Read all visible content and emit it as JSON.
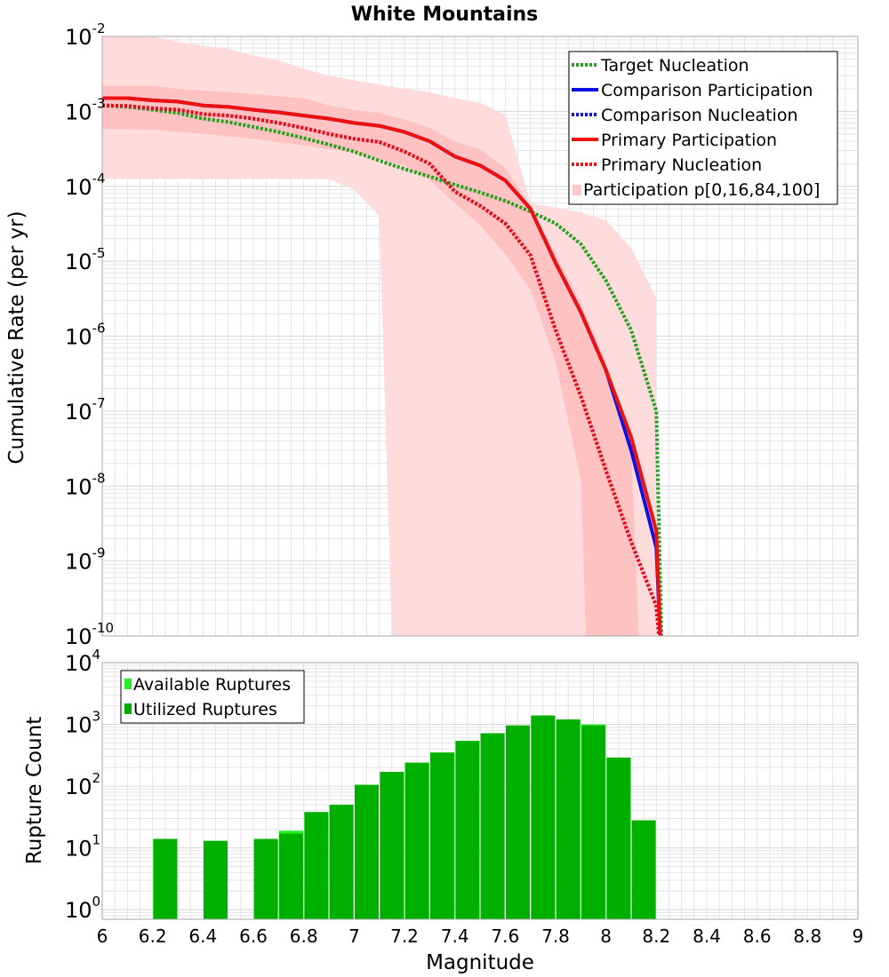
{
  "title": "White Mountains",
  "x_axis": {
    "label": "Magnitude",
    "range": [
      6,
      9
    ],
    "ticks": [
      "6",
      "6.2",
      "6.4",
      "6.6",
      "6.8",
      "7",
      "7.2",
      "7.4",
      "7.6",
      "7.8",
      "8",
      "8.2",
      "8.4",
      "8.6",
      "8.8",
      "9"
    ]
  },
  "colors": {
    "target": "#22a01e",
    "comparison": "#1010e0",
    "primary": "#ee1111",
    "band_outer": "#ffdcdc",
    "band_inner": "#ffc2c2",
    "available": "#22ee22",
    "utilized": "#00b000",
    "grid": "#e4e4e4",
    "frame": "#aaaaaa"
  },
  "chart_data": [
    {
      "type": "line",
      "title": "White Mountains",
      "ylabel": "Cumulative Rate (per yr)",
      "yscale": "log",
      "ylim": [
        1e-10,
        0.01
      ],
      "xlim": [
        6,
        9
      ],
      "y_tick_labels": [
        {
          "base": "10",
          "exp": "-2"
        },
        {
          "base": "10",
          "exp": "-3"
        },
        {
          "base": "10",
          "exp": "-4"
        },
        {
          "base": "10",
          "exp": "-5"
        },
        {
          "base": "10",
          "exp": "-6"
        },
        {
          "base": "10",
          "exp": "-7"
        },
        {
          "base": "10",
          "exp": "-8"
        },
        {
          "base": "10",
          "exp": "-9"
        },
        {
          "base": "10",
          "exp": "-10"
        }
      ],
      "legend_position": "top-right",
      "legend": [
        {
          "label": "Target Nucleation",
          "style": "dotted",
          "color_key": "target"
        },
        {
          "label": "Comparison Participation",
          "style": "solid",
          "color_key": "comparison"
        },
        {
          "label": "Comparison Nucleation",
          "style": "dotted",
          "color_key": "comparison"
        },
        {
          "label": "Primary Participation",
          "style": "solid",
          "color_key": "primary"
        },
        {
          "label": "Primary Nucleation",
          "style": "dotted",
          "color_key": "primary"
        },
        {
          "label": "Participation p[0,16,84,100]",
          "style": "band",
          "color_key": "band_outer"
        }
      ],
      "x": [
        6.0,
        6.1,
        6.2,
        6.3,
        6.4,
        6.5,
        6.6,
        6.7,
        6.8,
        6.9,
        7.0,
        7.1,
        7.2,
        7.3,
        7.4,
        7.5,
        7.6,
        7.7,
        7.8,
        7.9,
        8.0,
        8.1,
        8.2
      ],
      "series": [
        {
          "name": "Target Nucleation",
          "style": "dotted",
          "color_key": "target",
          "x": [
            6.0,
            6.1,
            6.2,
            6.3,
            6.4,
            6.5,
            6.6,
            6.7,
            6.8,
            6.9,
            7.0,
            7.1,
            7.2,
            7.3,
            7.4,
            7.5,
            7.6,
            7.7,
            7.8,
            7.9,
            8.0,
            8.1,
            8.2,
            8.22
          ],
          "values": [
            0.0012,
            0.00115,
            0.00105,
            0.00095,
            0.0008,
            0.00072,
            0.00062,
            0.00053,
            0.00044,
            0.00036,
            0.00029,
            0.00022,
            0.00017,
            0.000135,
            0.000105,
            8.3e-05,
            6.4e-05,
            4.6e-05,
            3.2e-05,
            1.7e-05,
            5.5e-06,
            1.2e-06,
            1e-07,
            1e-10
          ]
        },
        {
          "name": "Comparison Participation",
          "style": "solid",
          "color_key": "comparison",
          "x": [
            6.0,
            6.1,
            6.2,
            6.3,
            6.4,
            6.5,
            6.6,
            6.7,
            6.8,
            6.9,
            7.0,
            7.1,
            7.2,
            7.3,
            7.4,
            7.5,
            7.6,
            7.7,
            7.8,
            7.9,
            8.0,
            8.1,
            8.2,
            8.215
          ],
          "values": [
            0.0015,
            0.0015,
            0.0014,
            0.00135,
            0.0012,
            0.00115,
            0.00105,
            0.00097,
            0.00088,
            0.0008,
            0.0007,
            0.00064,
            0.00053,
            0.0004,
            0.00025,
            0.00019,
            0.00012,
            5e-05,
            9.5e-06,
            2.1e-06,
            3.5e-07,
            3e-08,
            1.5e-09,
            1e-10
          ]
        },
        {
          "name": "Comparison Nucleation",
          "style": "dotted",
          "color_key": "comparison",
          "x": [
            6.0,
            6.1,
            6.2,
            6.3,
            6.4,
            6.5,
            6.6,
            6.7,
            6.8,
            6.9,
            7.0,
            7.1,
            7.2,
            7.3,
            7.4,
            7.5,
            7.6,
            7.7,
            7.8,
            7.9,
            8.0,
            8.1,
            8.2,
            8.21
          ],
          "values": [
            0.0012,
            0.00118,
            0.0011,
            0.00105,
            0.00092,
            0.00088,
            0.0008,
            0.0007,
            0.0006,
            0.0005,
            0.00043,
            0.00039,
            0.00029,
            0.0002,
            8.5e-05,
            5.5e-05,
            3.2e-05,
            1.2e-05,
            1.2e-06,
            1.6e-07,
            1.6e-08,
            1.8e-09,
            2.5e-10,
            1e-10
          ]
        },
        {
          "name": "Primary Participation",
          "style": "solid",
          "color_key": "primary",
          "x": [
            6.0,
            6.1,
            6.2,
            6.3,
            6.4,
            6.5,
            6.6,
            6.7,
            6.8,
            6.9,
            7.0,
            7.1,
            7.2,
            7.3,
            7.4,
            7.5,
            7.6,
            7.7,
            7.8,
            7.9,
            8.0,
            8.1,
            8.2,
            8.215
          ],
          "values": [
            0.0015,
            0.0015,
            0.0014,
            0.00135,
            0.0012,
            0.00115,
            0.00105,
            0.00097,
            0.00088,
            0.0008,
            0.0007,
            0.00064,
            0.00053,
            0.0004,
            0.00025,
            0.00019,
            0.00012,
            5e-05,
            9.5e-06,
            2.1e-06,
            3.5e-07,
            4.5e-08,
            2.5e-09,
            1e-10
          ]
        },
        {
          "name": "Primary Nucleation",
          "style": "dotted",
          "color_key": "primary",
          "x": [
            6.0,
            6.1,
            6.2,
            6.3,
            6.4,
            6.5,
            6.6,
            6.7,
            6.8,
            6.9,
            7.0,
            7.1,
            7.2,
            7.3,
            7.4,
            7.5,
            7.6,
            7.7,
            7.8,
            7.9,
            8.0,
            8.1,
            8.2,
            8.21
          ],
          "values": [
            0.0012,
            0.00118,
            0.0011,
            0.00105,
            0.00092,
            0.00088,
            0.0008,
            0.0007,
            0.0006,
            0.0005,
            0.00043,
            0.00039,
            0.00029,
            0.0002,
            8.5e-05,
            5.5e-05,
            3.2e-05,
            1.2e-05,
            1.2e-06,
            1.6e-07,
            1.6e-08,
            1.8e-09,
            2.5e-10,
            1e-10
          ]
        }
      ],
      "bands": [
        {
          "name": "p0-p100",
          "color_key": "band_outer",
          "x_upper": [
            6.0,
            6.2,
            6.3,
            6.4,
            6.5,
            6.6,
            6.7,
            6.8,
            6.9,
            7.0,
            7.1,
            7.2,
            7.3,
            7.4,
            7.5,
            7.6,
            7.7,
            7.8,
            7.9,
            8.0,
            8.1,
            8.2
          ],
          "upper": [
            0.01,
            0.01,
            0.0085,
            0.0075,
            0.0068,
            0.0056,
            0.0048,
            0.0037,
            0.003,
            0.0026,
            0.0023,
            0.002,
            0.0018,
            0.0015,
            0.0013,
            0.0009,
            6e-05,
            5.2e-05,
            4.5e-05,
            3.5e-05,
            1.5e-05,
            3.2e-06
          ],
          "x_lower": [
            6.0,
            6.9,
            7.0,
            7.1,
            7.15,
            8.2
          ],
          "lower": [
            0.000125,
            0.000125,
            9e-05,
            4e-05,
            1e-10,
            1e-10
          ]
        },
        {
          "name": "p16-p84",
          "color_key": "band_inner",
          "x_upper": [
            6.0,
            6.2,
            6.3,
            6.4,
            6.5,
            6.6,
            6.7,
            6.8,
            6.9,
            7.0,
            7.1,
            7.2,
            7.3,
            7.4,
            7.5,
            7.6,
            7.7,
            7.8,
            7.9,
            8.0,
            8.1,
            8.13
          ],
          "upper": [
            0.0022,
            0.0022,
            0.002,
            0.0019,
            0.0018,
            0.0017,
            0.0016,
            0.0015,
            0.0012,
            0.00105,
            0.00095,
            0.00078,
            0.0006,
            0.0004,
            0.00031,
            0.000175,
            5.5e-05,
            1.25e-05,
            2.8e-06,
            4.5e-07,
            3.4e-08,
            1e-10
          ],
          "x_lower": [
            6.0,
            6.2,
            6.4,
            6.6,
            6.8,
            7.0,
            7.2,
            7.3,
            7.4,
            7.5,
            7.6,
            7.7,
            7.8,
            7.9,
            7.92
          ],
          "lower": [
            0.00058,
            0.00057,
            0.0005,
            0.00043,
            0.00035,
            0.00028,
            0.00019,
            0.00012,
            6e-05,
            3e-05,
            1.25e-05,
            4.2e-06,
            4.5e-07,
            1.2e-08,
            1e-10
          ]
        }
      ]
    },
    {
      "type": "bar",
      "ylabel": "Rupture Count",
      "yscale": "log",
      "ylim": [
        0.7,
        10000
      ],
      "xlim": [
        6,
        9
      ],
      "bar_width": 0.095,
      "y_tick_labels": [
        {
          "base": "10",
          "exp": "4"
        },
        {
          "base": "10",
          "exp": "3"
        },
        {
          "base": "10",
          "exp": "2"
        },
        {
          "base": "10",
          "exp": "1"
        },
        {
          "base": "10",
          "exp": "0"
        }
      ],
      "legend_position": "top-left",
      "legend": [
        {
          "label": "Available Ruptures",
          "color_key": "available"
        },
        {
          "label": "Utilized Ruptures",
          "color_key": "utilized"
        }
      ],
      "x": [
        6.25,
        6.45,
        6.65,
        6.75,
        6.85,
        6.95,
        7.05,
        7.15,
        7.25,
        7.35,
        7.45,
        7.55,
        7.65,
        7.75,
        7.85,
        7.95,
        8.05,
        8.15
      ],
      "series": [
        {
          "name": "Available Ruptures",
          "color_key": "available",
          "values": [
            14,
            13,
            14,
            19,
            38,
            50,
            105,
            170,
            240,
            350,
            540,
            720,
            960,
            1390,
            1200,
            1000,
            290,
            28
          ]
        },
        {
          "name": "Utilized Ruptures",
          "color_key": "utilized",
          "values": [
            14,
            13,
            14,
            17,
            38,
            50,
            105,
            170,
            240,
            350,
            540,
            720,
            960,
            1390,
            1200,
            950,
            290,
            28
          ]
        }
      ]
    }
  ]
}
